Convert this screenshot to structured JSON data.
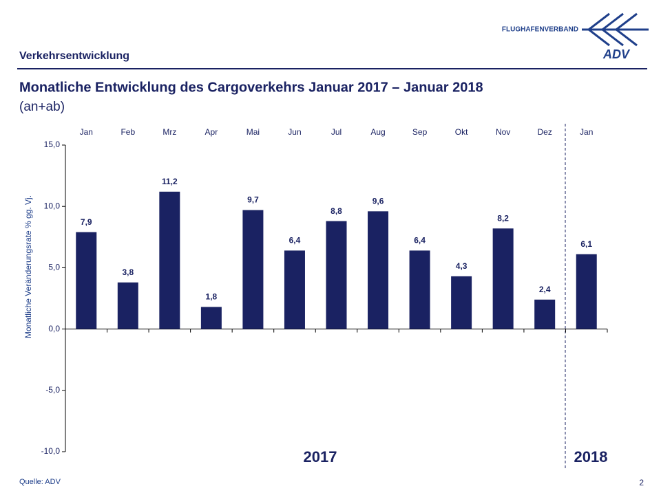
{
  "header": {
    "section": "Verkehrsentwicklung",
    "logo_text": "FLUGHAFENVERBAND",
    "logo_mark": "ADV"
  },
  "chart_data": {
    "type": "bar",
    "title": "Monatliche Entwicklung des Cargoverkehrs Januar 2017 – Januar 2018",
    "subtitle": "(an+ab)",
    "y_label": "Monatliche Veränderungsrate % gg. Vj.",
    "categories": [
      "Jan",
      "Feb",
      "Mrz",
      "Apr",
      "Mai",
      "Jun",
      "Jul",
      "Aug",
      "Sep",
      "Okt",
      "Nov",
      "Dez",
      "Jan"
    ],
    "values": [
      7.9,
      3.8,
      11.2,
      1.8,
      9.7,
      6.4,
      8.8,
      9.6,
      6.4,
      4.3,
      8.2,
      2.4,
      6.1
    ],
    "value_labels": [
      "7,9",
      "3,8",
      "11,2",
      "1,8",
      "9,7",
      "6,4",
      "8,8",
      "9,6",
      "6,4",
      "4,3",
      "8,2",
      "2,4",
      "6,1"
    ],
    "color": "#1a2262",
    "ylim": [
      -10,
      15
    ],
    "yticks": [
      {
        "value": -10,
        "label": "-10,0"
      },
      {
        "value": -5,
        "label": "-5,0"
      },
      {
        "value": 0,
        "label": "0,0"
      },
      {
        "value": 5,
        "label": "5,0"
      },
      {
        "value": 10,
        "label": "10,0"
      },
      {
        "value": 15,
        "label": "15,0"
      }
    ],
    "year_labels": [
      "2017",
      "2018"
    ]
  },
  "footer": {
    "source": "Quelle: ADV",
    "page": "2"
  }
}
